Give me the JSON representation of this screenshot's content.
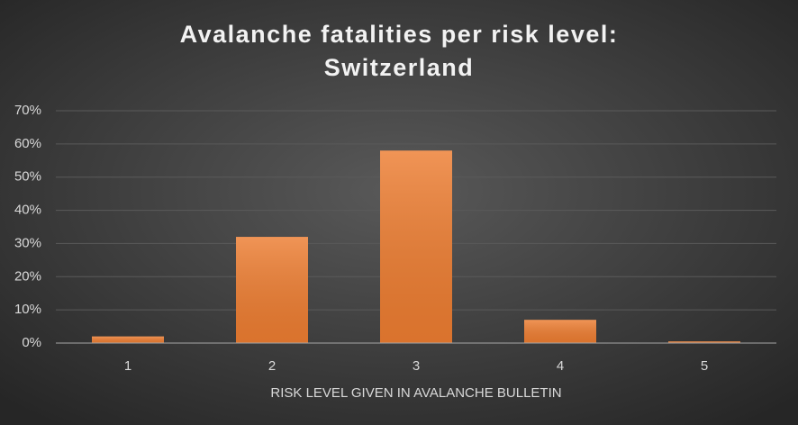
{
  "chart_data": {
    "type": "bar",
    "title": [
      "Avalanche fatalities per risk level:",
      "Switzerland"
    ],
    "x_label": "RISK LEVEL GIVEN IN AVALANCHE BULLETIN",
    "categories": [
      "1",
      "2",
      "3",
      "4",
      "5"
    ],
    "values": [
      2,
      32,
      58,
      7,
      0.5
    ],
    "color": "#ed7d31",
    "ylim": [
      0,
      70
    ],
    "yticks": [
      {
        "value": 0,
        "label": "0%"
      },
      {
        "value": 10,
        "label": "10%"
      },
      {
        "value": 20,
        "label": "20%"
      },
      {
        "value": 30,
        "label": "30%"
      },
      {
        "value": 40,
        "label": "40%"
      },
      {
        "value": 50,
        "label": "50%"
      },
      {
        "value": 60,
        "label": "60%"
      },
      {
        "value": 70,
        "label": "70%"
      }
    ],
    "grid": true
  }
}
